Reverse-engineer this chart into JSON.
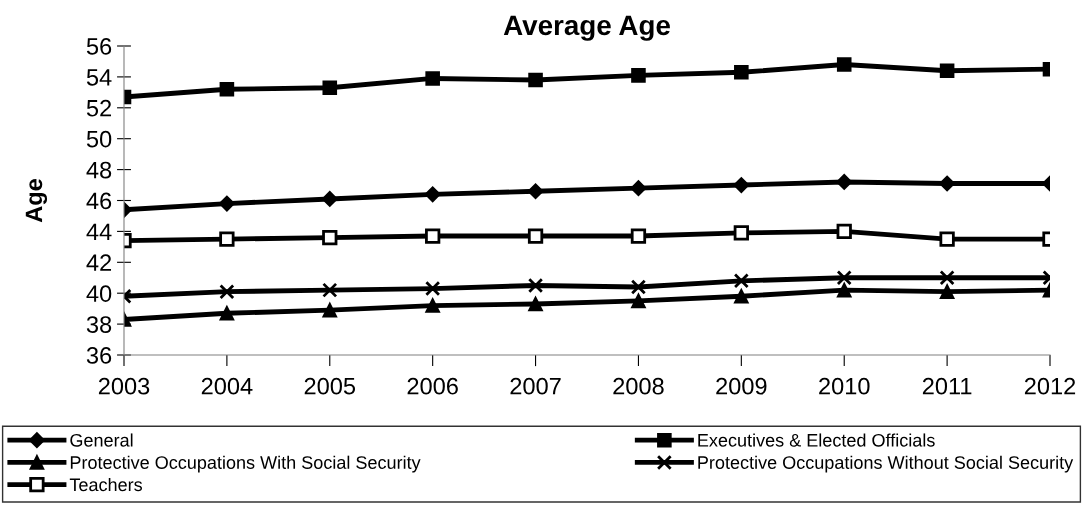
{
  "chart_data": {
    "type": "line",
    "title": "Average Age",
    "ylabel": "Age",
    "categories": [
      "2003",
      "2004",
      "2005",
      "2006",
      "2007",
      "2008",
      "2009",
      "2010",
      "2011",
      "2012"
    ],
    "series": [
      {
        "name": "General",
        "color": "#000000",
        "marker": "diamond",
        "values": [
          45.4,
          45.8,
          46.1,
          46.4,
          46.6,
          46.8,
          47.0,
          47.2,
          47.1,
          47.1
        ]
      },
      {
        "name": "Executives & Elected Officials",
        "color": "#000000",
        "marker": "square",
        "values": [
          52.7,
          53.2,
          53.3,
          53.9,
          53.8,
          54.1,
          54.3,
          54.8,
          54.4,
          54.5
        ]
      },
      {
        "name": "Protective Occupations With Social Security",
        "color": "#000000",
        "marker": "triangle",
        "values": [
          38.3,
          38.7,
          38.9,
          39.2,
          39.3,
          39.5,
          39.8,
          40.2,
          40.1,
          40.2
        ]
      },
      {
        "name": "Protective Occupations Without Social Security",
        "color": "#000000",
        "marker": "cross",
        "values": [
          39.8,
          40.1,
          40.2,
          40.3,
          40.5,
          40.4,
          40.8,
          41.0,
          41.0,
          41.0
        ]
      },
      {
        "name": "Teachers",
        "color": "#000000",
        "marker": "square_open",
        "values": [
          43.4,
          43.5,
          43.6,
          43.7,
          43.7,
          43.7,
          43.9,
          44.0,
          43.5,
          43.5
        ]
      }
    ],
    "ylim": [
      36,
      56
    ],
    "yticks": [
      36,
      38,
      40,
      42,
      44,
      46,
      48,
      50,
      52,
      54,
      56
    ],
    "grid": false,
    "legend": "bottom"
  }
}
